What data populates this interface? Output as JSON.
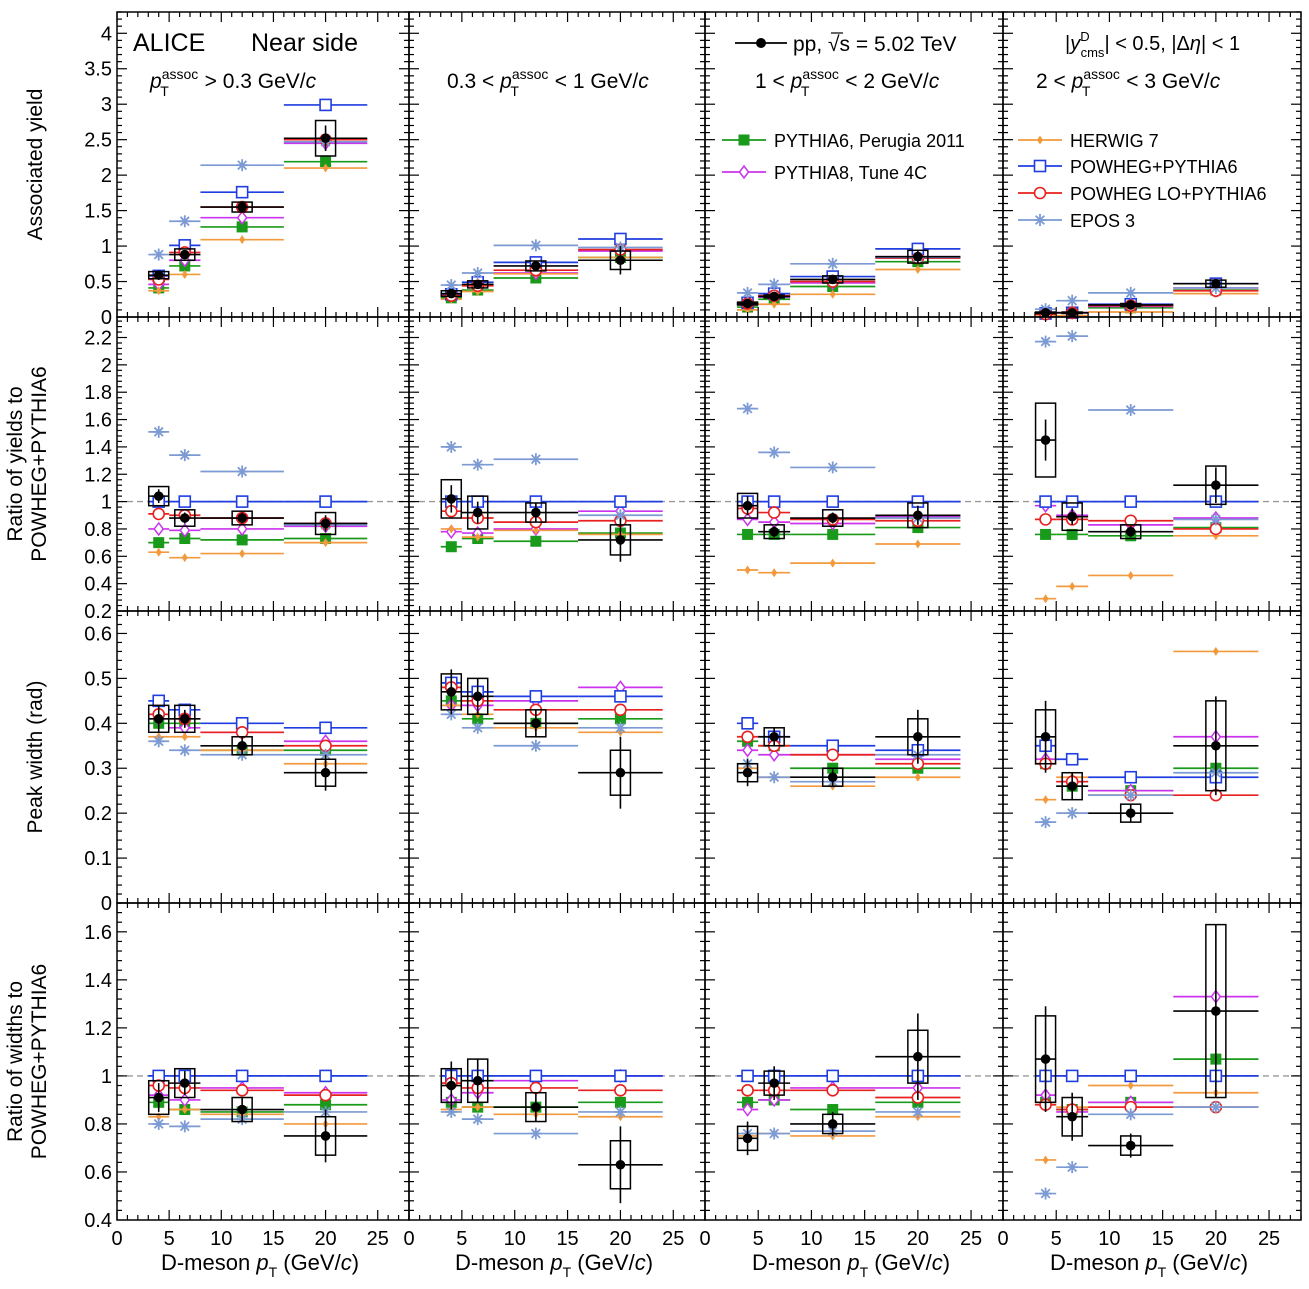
{
  "chart_data": {
    "type": "scatter",
    "title": "",
    "experiment_label": "ALICE",
    "region_label": "Near side",
    "data_label": "pp, √s = 5.02 TeV",
    "cut_label": "|y_cms^D| < 0.5, |Δη| < 1",
    "xlabel": "D-meson p_T (GeV/c)",
    "xlim": [
      0,
      28
    ],
    "xticks": [
      "0",
      "5",
      "10",
      "15",
      "20",
      "25"
    ],
    "grid": false,
    "legend_position": "top-right",
    "bins": [
      [
        3,
        5
      ],
      [
        5,
        8
      ],
      [
        8,
        16
      ],
      [
        16,
        24
      ]
    ],
    "columns": [
      "p_T^assoc > 0.3 GeV/c",
      "0.3 < p_T^assoc < 1 GeV/c",
      "1 < p_T^assoc < 2 GeV/c",
      "2 < p_T^assoc < 3 GeV/c"
    ],
    "series_meta": [
      {
        "name": "PYTHIA6, Perugia 2011",
        "color": "#1a9a1a",
        "marker": "square-filled"
      },
      {
        "name": "PYTHIA8, Tune 4C",
        "color": "#cc33ee",
        "marker": "diamond-open"
      },
      {
        "name": "HERWIG 7",
        "color": "#f39a3e",
        "marker": "diamond-filled"
      },
      {
        "name": "POWHEG+PYTHIA6",
        "color": "#1f3de0",
        "marker": "square-open"
      },
      {
        "name": "POWHEG LO+PYTHIA6",
        "color": "#e8201f",
        "marker": "circle-open"
      },
      {
        "name": "EPOS 3",
        "color": "#7c9ad3",
        "marker": "star"
      }
    ],
    "rows": [
      {
        "ylabel": [
          "Associated yield"
        ],
        "ylim": [
          0,
          4.3
        ],
        "yref": null,
        "yticks": [
          "0",
          "0.5",
          "1",
          "1.5",
          "2",
          "2.5",
          "3",
          "3.5",
          "4"
        ],
        "data": [
          {
            "y": [
              0.59,
              0.88,
              1.55,
              2.52
            ],
            "err": [
              0.04,
              0.06,
              0.07,
              0.18
            ],
            "sys": [
              0.05,
              0.08,
              0.07,
              0.25
            ]
          },
          {
            "y": [
              0.33,
              0.46,
              0.72,
              0.8
            ],
            "err": [
              0.03,
              0.04,
              0.06,
              0.2
            ],
            "sys": [
              0.04,
              0.05,
              0.07,
              0.13
            ]
          },
          {
            "y": [
              0.19,
              0.29,
              0.53,
              0.85
            ],
            "err": [
              0.02,
              0.02,
              0.03,
              0.1
            ],
            "sys": [
              0.02,
              0.02,
              0.05,
              0.09
            ]
          },
          {
            "y": [
              0.06,
              0.06,
              0.17,
              0.47
            ],
            "err": [
              0.01,
              0.01,
              0.02,
              0.03
            ],
            "sys": [
              0.01,
              0.01,
              0.02,
              0.05
            ]
          }
        ],
        "models": [
          [
            [
              0.41,
              0.72,
              1.27,
              2.19
            ],
            [
              0.27,
              0.38,
              0.55,
              0.84
            ],
            [
              0.14,
              0.25,
              0.43,
              0.78
            ],
            [
              0.04,
              0.06,
              0.13,
              0.38
            ]
          ],
          [
            [
              0.46,
              0.8,
              1.4,
              2.45
            ],
            [
              0.32,
              0.45,
              0.62,
              0.93
            ],
            [
              0.17,
              0.28,
              0.48,
              0.85
            ],
            [
              0.04,
              0.06,
              0.15,
              0.41
            ]
          ],
          [
            [
              0.37,
              0.6,
              1.09,
              2.1
            ],
            [
              0.25,
              0.36,
              0.61,
              0.84
            ],
            [
              0.1,
              0.18,
              0.32,
              0.67
            ],
            [
              0.02,
              0.02,
              0.07,
              0.33
            ]
          ],
          [
            [
              0.58,
              1.01,
              1.76,
              2.99
            ],
            [
              0.32,
              0.49,
              0.77,
              1.1
            ],
            [
              0.2,
              0.33,
              0.57,
              0.96
            ],
            [
              0.05,
              0.06,
              0.18,
              0.47
            ]
          ],
          [
            [
              0.53,
              0.91,
              1.55,
              2.5
            ],
            [
              0.3,
              0.44,
              0.66,
              0.95
            ],
            [
              0.19,
              0.3,
              0.5,
              0.83
            ],
            [
              0.04,
              0.06,
              0.16,
              0.37
            ]
          ],
          [
            [
              0.88,
              1.35,
              2.14,
              2.47
            ],
            [
              0.45,
              0.62,
              1.01,
              0.98
            ],
            [
              0.34,
              0.46,
              0.75,
              0.84
            ],
            [
              0.11,
              0.23,
              0.34,
              0.41
            ]
          ]
        ]
      },
      {
        "ylabel": [
          "Ratio of yields to",
          "POWHEG+PYTHIA6"
        ],
        "ylim": [
          0.2,
          2.35
        ],
        "yref": 1,
        "yticks": [
          "0.2",
          "0.4",
          "0.6",
          "0.8",
          "1",
          "1.2",
          "1.4",
          "1.6",
          "1.8",
          "2",
          "2.2"
        ],
        "data": [
          {
            "y": [
              1.04,
              0.88,
              0.88,
              0.84
            ],
            "err": [
              0.05,
              0.04,
              0.04,
              0.06
            ],
            "sys": [
              0.07,
              0.06,
              0.05,
              0.08
            ]
          },
          {
            "y": [
              1.02,
              0.92,
              0.92,
              0.72
            ],
            "err": [
              0.1,
              0.08,
              0.07,
              0.16
            ],
            "sys": [
              0.14,
              0.12,
              0.07,
              0.11
            ]
          },
          {
            "y": [
              0.97,
              0.78,
              0.88,
              0.9
            ],
            "err": [
              0.07,
              0.04,
              0.04,
              0.07
            ],
            "sys": [
              0.09,
              0.05,
              0.06,
              0.09
            ]
          },
          {
            "y": [
              1.45,
              0.89,
              0.78,
              1.12
            ],
            "err": [
              0.15,
              0.06,
              0.04,
              0.13
            ],
            "sys": [
              0.27,
              0.1,
              0.05,
              0.14
            ]
          }
        ],
        "models": [
          [
            [
              0.7,
              0.73,
              0.72,
              0.73
            ],
            [
              0.67,
              0.73,
              0.71,
              0.77
            ],
            [
              0.76,
              0.76,
              0.76,
              0.81
            ],
            [
              0.76,
              0.76,
              0.75,
              0.81
            ]
          ],
          [
            [
              0.8,
              0.79,
              0.8,
              0.82
            ],
            [
              0.78,
              0.77,
              0.8,
              0.93
            ],
            [
              0.87,
              0.85,
              0.84,
              0.89
            ],
            [
              0.97,
              0.9,
              0.83,
              0.88
            ]
          ],
          [
            [
              0.63,
              0.59,
              0.62,
              0.7
            ],
            [
              0.8,
              0.74,
              0.79,
              0.76
            ],
            [
              0.5,
              0.48,
              0.55,
              0.69
            ],
            [
              0.29,
              0.38,
              0.46,
              0.75
            ]
          ],
          [
            [
              1.0,
              1.0,
              1.0,
              1.0
            ],
            [
              1.0,
              1.0,
              1.0,
              1.0
            ],
            [
              1.0,
              1.0,
              1.0,
              1.0
            ],
            [
              1.0,
              1.0,
              1.0,
              1.0
            ]
          ],
          [
            [
              0.91,
              0.9,
              0.88,
              0.84
            ],
            [
              0.93,
              0.88,
              0.85,
              0.86
            ],
            [
              0.95,
              0.92,
              0.87,
              0.86
            ],
            [
              0.87,
              0.87,
              0.86,
              0.8
            ]
          ],
          [
            [
              1.51,
              1.34,
              1.22,
              0.83
            ],
            [
              1.4,
              1.27,
              1.31,
              0.9
            ],
            [
              1.68,
              1.36,
              1.25,
              0.88
            ],
            [
              2.17,
              2.21,
              1.67,
              0.87
            ]
          ]
        ]
      },
      {
        "ylabel": [
          "Peak width (rad)"
        ],
        "ylim": [
          0,
          0.65
        ],
        "yref": null,
        "yticks": [
          "0",
          "0.1",
          "0.2",
          "0.3",
          "0.4",
          "0.5",
          "0.6"
        ],
        "data": [
          {
            "y": [
              0.41,
              0.41,
              0.35,
              0.29
            ],
            "err": [
              0.03,
              0.02,
              0.02,
              0.04
            ],
            "sys": [
              0.03,
              0.03,
              0.02,
              0.03
            ]
          },
          {
            "y": [
              0.47,
              0.46,
              0.4,
              0.29
            ],
            "err": [
              0.05,
              0.04,
              0.03,
              0.08
            ],
            "sys": [
              0.04,
              0.04,
              0.03,
              0.05
            ]
          },
          {
            "y": [
              0.29,
              0.37,
              0.28,
              0.37
            ],
            "err": [
              0.03,
              0.02,
              0.02,
              0.06
            ],
            "sys": [
              0.02,
              0.02,
              0.02,
              0.04
            ]
          },
          {
            "y": [
              0.37,
              0.26,
              0.2,
              0.35
            ],
            "err": [
              0.08,
              0.03,
              0.02,
              0.11
            ],
            "sys": [
              0.06,
              0.03,
              0.02,
              0.1
            ]
          }
        ],
        "models": [
          [
            [
              0.4,
              0.4,
              0.34,
              0.34
            ],
            [
              0.45,
              0.41,
              0.4,
              0.41
            ],
            [
              0.36,
              0.35,
              0.3,
              0.3
            ],
            [
              0.31,
              0.26,
              0.25,
              0.3
            ]
          ],
          [
            [
              0.41,
              0.39,
              0.38,
              0.36
            ],
            [
              0.44,
              0.44,
              0.45,
              0.48
            ],
            [
              0.34,
              0.33,
              0.33,
              0.32
            ],
            [
              0.32,
              0.27,
              0.25,
              0.37
            ]
          ],
          [
            [
              0.37,
              0.37,
              0.34,
              0.31
            ],
            [
              0.44,
              0.42,
              0.39,
              0.38
            ],
            [
              0.3,
              0.28,
              0.26,
              0.28
            ],
            [
              0.23,
              0.28,
              0.24,
              0.56
            ]
          ],
          [
            [
              0.45,
              0.43,
              0.4,
              0.39
            ],
            [
              0.49,
              0.47,
              0.46,
              0.46
            ],
            [
              0.4,
              0.37,
              0.35,
              0.34
            ],
            [
              0.35,
              0.32,
              0.28,
              0.28
            ]
          ],
          [
            [
              0.42,
              0.41,
              0.38,
              0.35
            ],
            [
              0.48,
              0.45,
              0.43,
              0.43
            ],
            [
              0.37,
              0.35,
              0.33,
              0.31
            ],
            [
              0.31,
              0.27,
              0.24,
              0.24
            ]
          ],
          [
            [
              0.36,
              0.34,
              0.33,
              0.33
            ],
            [
              0.42,
              0.39,
              0.35,
              0.39
            ],
            [
              0.31,
              0.28,
              0.27,
              0.33
            ],
            [
              0.18,
              0.2,
              0.24,
              0.29
            ]
          ]
        ]
      },
      {
        "ylabel": [
          "Ratio of widths to",
          "POWHEG+PYTHIA6"
        ],
        "ylim": [
          0.4,
          1.72
        ],
        "yref": 1,
        "yticks": [
          "0.4",
          "0.6",
          "0.8",
          "1",
          "1.2",
          "1.4",
          "1.6"
        ],
        "data": [
          {
            "y": [
              0.91,
              0.97,
              0.86,
              0.75
            ],
            "err": [
              0.06,
              0.05,
              0.05,
              0.11
            ],
            "sys": [
              0.07,
              0.06,
              0.05,
              0.08
            ]
          },
          {
            "y": [
              0.96,
              0.98,
              0.87,
              0.63
            ],
            "err": [
              0.1,
              0.09,
              0.06,
              0.16
            ],
            "sys": [
              0.07,
              0.09,
              0.06,
              0.1
            ]
          },
          {
            "y": [
              0.74,
              0.97,
              0.8,
              1.08
            ],
            "err": [
              0.07,
              0.07,
              0.05,
              0.18
            ],
            "sys": [
              0.05,
              0.05,
              0.04,
              0.11
            ]
          },
          {
            "y": [
              1.07,
              0.83,
              0.71,
              1.27
            ],
            "err": [
              0.22,
              0.1,
              0.05,
              0.36
            ],
            "sys": [
              0.18,
              0.08,
              0.04,
              0.36
            ]
          }
        ],
        "models": [
          [
            [
              0.89,
              0.86,
              0.85,
              0.88
            ],
            [
              0.89,
              0.87,
              0.87,
              0.89
            ],
            [
              0.89,
              0.9,
              0.86,
              0.89
            ],
            [
              0.89,
              0.86,
              0.89,
              1.07
            ]
          ],
          [
            [
              0.92,
              0.9,
              0.95,
              0.93
            ],
            [
              0.9,
              0.93,
              0.98,
              1.0
            ],
            [
              0.86,
              0.9,
              0.95,
              0.95
            ],
            [
              0.92,
              0.85,
              0.89,
              1.33
            ]
          ],
          [
            [
              0.83,
              0.86,
              0.84,
              0.8
            ],
            [
              0.86,
              0.87,
              0.84,
              0.83
            ],
            [
              0.75,
              0.76,
              0.75,
              0.83
            ],
            [
              0.65,
              0.87,
              0.96,
              0.93
            ]
          ],
          [
            [
              1.0,
              1.0,
              1.0,
              1.0
            ],
            [
              1.0,
              1.0,
              1.0,
              1.0
            ],
            [
              1.0,
              1.0,
              1.0,
              1.0
            ],
            [
              1.0,
              1.0,
              1.0,
              1.0
            ]
          ],
          [
            [
              0.96,
              0.95,
              0.94,
              0.92
            ],
            [
              0.97,
              0.95,
              0.95,
              0.94
            ],
            [
              0.94,
              0.94,
              0.94,
              0.91
            ],
            [
              0.88,
              0.86,
              0.87,
              0.87
            ]
          ],
          [
            [
              0.8,
              0.79,
              0.82,
              0.85
            ],
            [
              0.85,
              0.82,
              0.76,
              0.85
            ],
            [
              0.76,
              0.76,
              0.77,
              0.85
            ],
            [
              0.51,
              0.62,
              0.84,
              0.87
            ]
          ]
        ]
      }
    ]
  }
}
